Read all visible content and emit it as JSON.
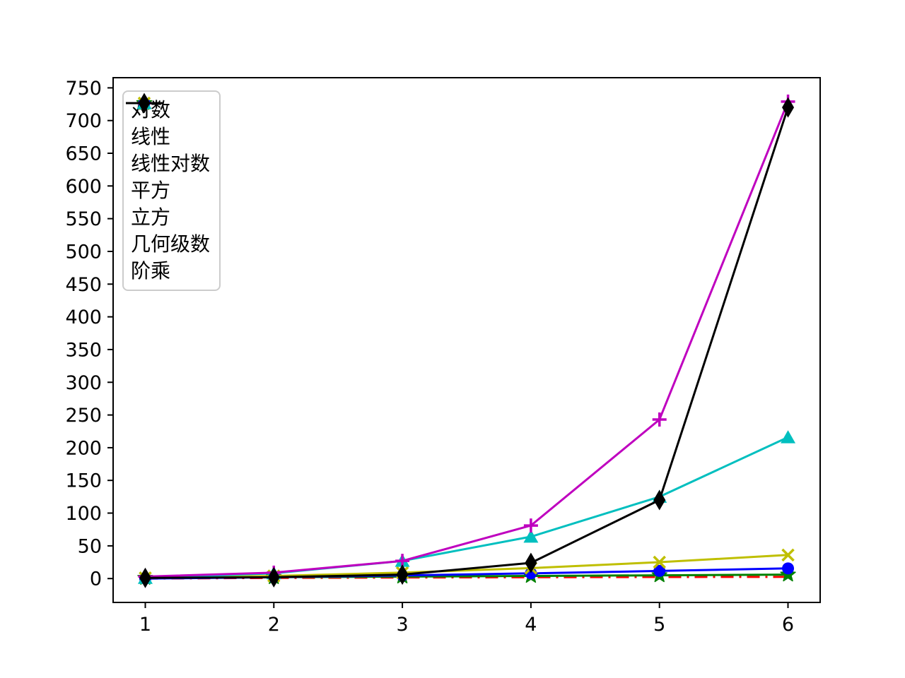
{
  "chart_data": {
    "type": "line",
    "title": "",
    "xlabel": "",
    "ylabel": "",
    "grid": false,
    "legend_position": "upper-left",
    "x": [
      1,
      2,
      3,
      4,
      5,
      6
    ],
    "xticks": [
      "1",
      "2",
      "3",
      "4",
      "5",
      "6"
    ],
    "yticks": [
      "0",
      "50",
      "100",
      "150",
      "200",
      "250",
      "300",
      "350",
      "400",
      "450",
      "500",
      "550",
      "600",
      "650",
      "700",
      "750"
    ],
    "ytick_values": [
      0,
      50,
      100,
      150,
      200,
      250,
      300,
      350,
      400,
      450,
      500,
      550,
      600,
      650,
      700,
      750
    ],
    "xtick_values": [
      1,
      2,
      3,
      4,
      5,
      6
    ],
    "xlim": [
      0.75,
      6.25
    ],
    "ylim": [
      -36.5,
      765.5
    ],
    "series": [
      {
        "id": "log",
        "name": "对数",
        "color": "#ff0000",
        "linestyle": "dashdot",
        "marker": "none",
        "values": [
          0,
          1,
          1.585,
          2,
          2.322,
          2.585
        ]
      },
      {
        "id": "linear",
        "name": "线性",
        "color": "#008000",
        "linestyle": "solid",
        "marker": "star",
        "values": [
          1,
          2,
          3,
          4,
          5,
          6
        ]
      },
      {
        "id": "linearithmic",
        "name": "线性对数",
        "color": "#0000ff",
        "linestyle": "solid",
        "marker": "circle",
        "values": [
          0,
          2,
          4.755,
          8,
          11.61,
          15.51
        ]
      },
      {
        "id": "square",
        "name": "平方",
        "color": "#bfbf00",
        "linestyle": "solid",
        "marker": "x",
        "values": [
          1,
          4,
          9,
          16,
          25,
          36
        ]
      },
      {
        "id": "cube",
        "name": "立方",
        "color": "#00bfbf",
        "linestyle": "solid",
        "marker": "triangle-up",
        "values": [
          1,
          8,
          27,
          64,
          125,
          216
        ]
      },
      {
        "id": "geometric",
        "name": "几何级数",
        "color": "#bf00bf",
        "linestyle": "solid",
        "marker": "plus",
        "values": [
          3,
          9,
          27,
          81,
          243,
          729
        ]
      },
      {
        "id": "factorial",
        "name": "阶乘",
        "color": "#000000",
        "linestyle": "solid",
        "marker": "thin-diamond",
        "values": [
          1,
          2,
          6,
          24,
          120,
          720
        ]
      }
    ]
  }
}
